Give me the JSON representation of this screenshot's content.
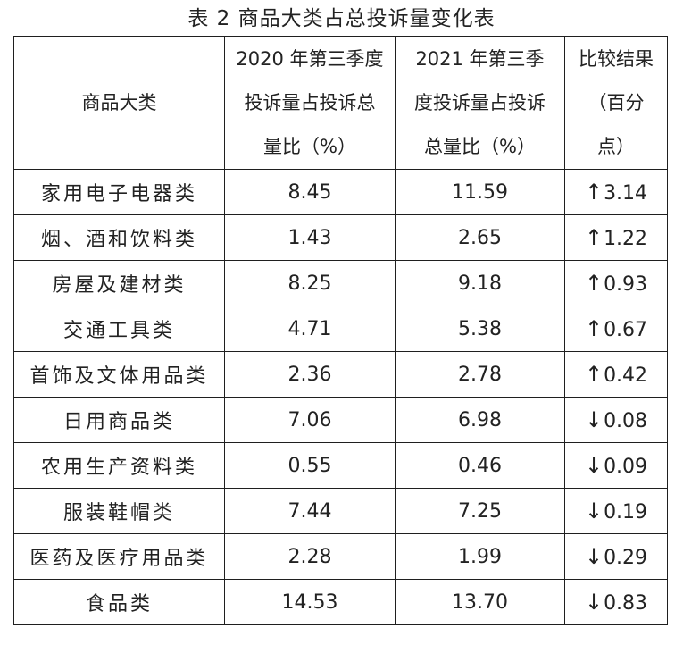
{
  "title": "表 2  商品大类占总投诉量变化表",
  "columns": {
    "category": "商品大类",
    "y2020": [
      "2020 年第三季度",
      "投诉量占投诉总",
      "量比（%）"
    ],
    "y2021": [
      "2021 年第三季",
      "度投诉量占投诉",
      "总量比（%）"
    ],
    "change": [
      "比较结果",
      "（百分",
      "点）"
    ]
  },
  "rows": [
    {
      "category": "家用电子电器类",
      "v2020": "8.45",
      "v2021": "11.59",
      "arrow": "↑",
      "change": "3.14"
    },
    {
      "category": "烟、酒和饮料类",
      "v2020": "1.43",
      "v2021": "2.65",
      "arrow": "↑",
      "change": "1.22"
    },
    {
      "category": "房屋及建材类",
      "v2020": "8.25",
      "v2021": "9.18",
      "arrow": "↑",
      "change": "0.93"
    },
    {
      "category": "交通工具类",
      "v2020": "4.71",
      "v2021": "5.38",
      "arrow": "↑",
      "change": "0.67"
    },
    {
      "category": "首饰及文体用品类",
      "v2020": "2.36",
      "v2021": "2.78",
      "arrow": "↑",
      "change": "0.42"
    },
    {
      "category": "日用商品类",
      "v2020": "7.06",
      "v2021": "6.98",
      "arrow": "↓",
      "change": "0.08"
    },
    {
      "category": "农用生产资料类",
      "v2020": "0.55",
      "v2021": "0.46",
      "arrow": "↓",
      "change": "0.09"
    },
    {
      "category": "服装鞋帽类",
      "v2020": "7.44",
      "v2021": "7.25",
      "arrow": "↓",
      "change": "0.19"
    },
    {
      "category": "医药及医疗用品类",
      "v2020": "2.28",
      "v2021": "1.99",
      "arrow": "↓",
      "change": "0.29"
    },
    {
      "category": "食品类",
      "v2020": "14.53",
      "v2021": "13.70",
      "arrow": "↓",
      "change": "0.83"
    }
  ]
}
